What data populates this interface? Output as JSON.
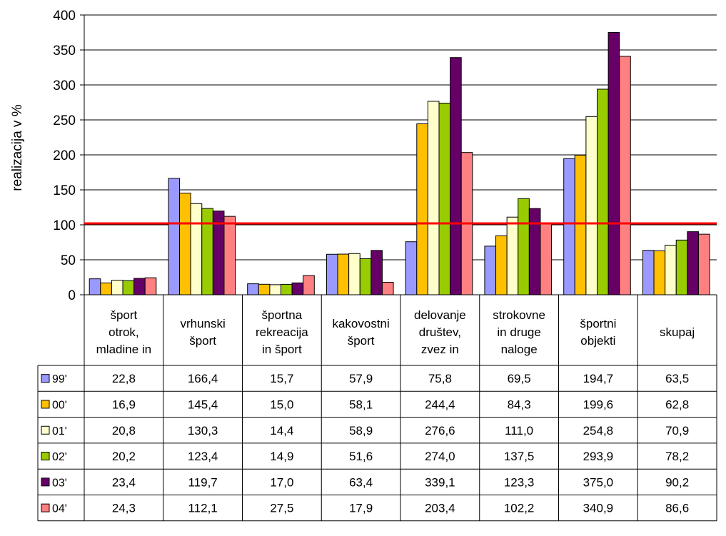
{
  "chart_data": {
    "type": "bar",
    "ylabel": "realizacija v %",
    "ylim": [
      0,
      400
    ],
    "yticks": [
      0,
      50,
      100,
      150,
      200,
      250,
      300,
      350,
      400
    ],
    "grid": true,
    "reference_line": {
      "value": 102,
      "color": "#ff0000"
    },
    "categories": [
      [
        "šport",
        "otrok,",
        "mladine in"
      ],
      [
        "vrhunski",
        "šport"
      ],
      [
        "športna",
        "rekreacija",
        "in šport"
      ],
      [
        "kakovostni",
        "šport"
      ],
      [
        "delovanje",
        "društev,",
        "zvez in"
      ],
      [
        "strokovne",
        "in druge",
        "naloge"
      ],
      [
        "športni",
        "objekti"
      ],
      [
        "skupaj"
      ]
    ],
    "series": [
      {
        "name": "99'",
        "color": "#9999ff",
        "values": [
          22.8,
          166.4,
          15.7,
          57.9,
          75.8,
          69.5,
          194.7,
          63.5
        ],
        "labels": [
          "22,8",
          "166,4",
          "15,7",
          "57,9",
          "75,8",
          "69,5",
          "194,7",
          "63,5"
        ]
      },
      {
        "name": "00'",
        "color": "#ffc000",
        "values": [
          16.9,
          145.4,
          15.0,
          58.1,
          244.4,
          84.3,
          199.6,
          62.8
        ],
        "labels": [
          "16,9",
          "145,4",
          "15,0",
          "58,1",
          "244,4",
          "84,3",
          "199,6",
          "62,8"
        ]
      },
      {
        "name": "01'",
        "color": "#ffffcc",
        "values": [
          20.8,
          130.3,
          14.4,
          58.9,
          276.6,
          111.0,
          254.8,
          70.9
        ],
        "labels": [
          "20,8",
          "130,3",
          "14,4",
          "58,9",
          "276,6",
          "111,0",
          "254,8",
          "70,9"
        ]
      },
      {
        "name": "02'",
        "color": "#99cc00",
        "values": [
          20.2,
          123.4,
          14.9,
          51.6,
          274.0,
          137.5,
          293.9,
          78.2
        ],
        "labels": [
          "20,2",
          "123,4",
          "14,9",
          "51,6",
          "274,0",
          "137,5",
          "293,9",
          "78,2"
        ]
      },
      {
        "name": "03'",
        "color": "#660066",
        "values": [
          23.4,
          119.7,
          17.0,
          63.4,
          339.1,
          123.3,
          375.0,
          90.2
        ],
        "labels": [
          "23,4",
          "119,7",
          "17,0",
          "63,4",
          "339,1",
          "123,3",
          "375,0",
          "90,2"
        ]
      },
      {
        "name": "04'",
        "color": "#ff8080",
        "values": [
          24.3,
          112.1,
          27.5,
          17.9,
          203.4,
          102.2,
          340.9,
          86.6
        ],
        "labels": [
          "24,3",
          "112,1",
          "27,5",
          "17,9",
          "203,4",
          "102,2",
          "340,9",
          "86,6"
        ]
      }
    ]
  }
}
